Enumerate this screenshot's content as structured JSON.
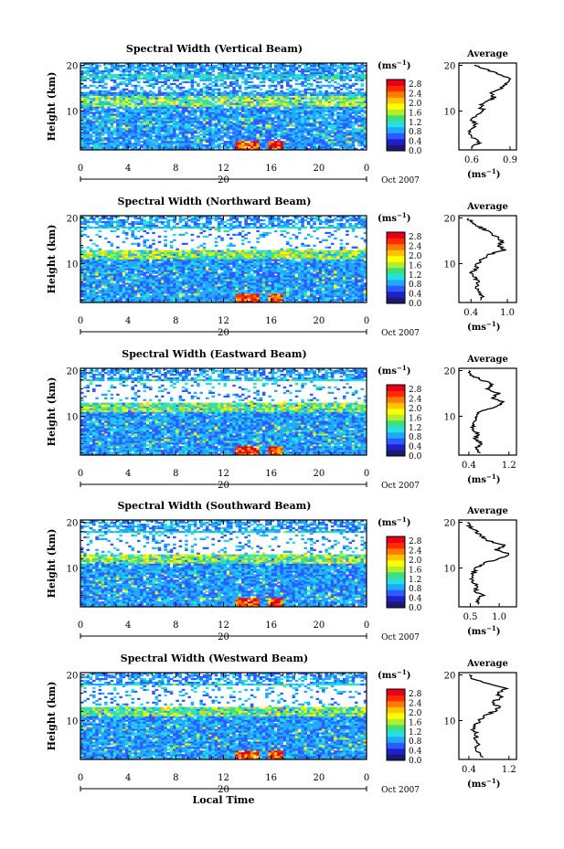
{
  "figure": {
    "xlabel": "Local Time",
    "ylabel": "Height (km)",
    "date_label": "Oct 2007",
    "day_label": "20",
    "colorbar_unit_base": "(ms",
    "colorbar_unit_exp": "−1",
    "colorbar_unit_close": ")",
    "profile_title": "Average",
    "profile_xlabel_base": "(ms",
    "profile_xlabel_exp": "−1",
    "profile_xlabel_close": ")"
  },
  "chart_data": [
    {
      "type": "heatmap",
      "title": "Spectral Width (Vertical Beam)",
      "x_ticks": [
        "0",
        "4",
        "8",
        "12",
        "16",
        "20",
        "0"
      ],
      "xlim": [
        0,
        24
      ],
      "y_ticks": [
        "20",
        "10"
      ],
      "ylim": [
        1.5,
        20.5
      ],
      "colorbar_ticks": [
        "2.8",
        "2.4",
        "2.0",
        "1.6",
        "1.2",
        "0.8",
        "0.4",
        "0.0"
      ],
      "colorbar_range": [
        0.0,
        3.0
      ],
      "colormap": [
        "#1a1a6e",
        "#2020c8",
        "#2a5cff",
        "#21a8ff",
        "#24e0e0",
        "#3ee07a",
        "#b4ee2a",
        "#ffff00",
        "#ffc400",
        "#ff7a00",
        "#ff2a00",
        "#e4001a"
      ],
      "profile": {
        "x_ticks": [
          "0.6",
          "0.9"
        ],
        "xlim": [
          0.5,
          0.95
        ],
        "y_ticks": [
          "20",
          "10"
        ],
        "points": [
          [
            0.6,
            2
          ],
          [
            0.66,
            3
          ],
          [
            0.62,
            4
          ],
          [
            0.58,
            5
          ],
          [
            0.6,
            6
          ],
          [
            0.63,
            7
          ],
          [
            0.6,
            8
          ],
          [
            0.64,
            9
          ],
          [
            0.7,
            10
          ],
          [
            0.66,
            11
          ],
          [
            0.72,
            12
          ],
          [
            0.78,
            13
          ],
          [
            0.74,
            14
          ],
          [
            0.84,
            15
          ],
          [
            0.86,
            16
          ],
          [
            0.9,
            17
          ],
          [
            0.82,
            18
          ],
          [
            0.72,
            19
          ],
          [
            0.62,
            20
          ]
        ]
      }
    },
    {
      "type": "heatmap",
      "title": "Spectral Width (Northward Beam)",
      "x_ticks": [
        "0",
        "4",
        "8",
        "12",
        "16",
        "20",
        "0"
      ],
      "xlim": [
        0,
        24
      ],
      "y_ticks": [
        "20",
        "10"
      ],
      "ylim": [
        1.5,
        20.5
      ],
      "colorbar_ticks": [
        "2.8",
        "2.4",
        "2.0",
        "1.6",
        "1.2",
        "0.8",
        "0.4",
        "0.0"
      ],
      "colorbar_range": [
        0.0,
        3.0
      ],
      "profile": {
        "x_ticks": [
          "0.4",
          "1.0"
        ],
        "xlim": [
          0.2,
          1.15
        ],
        "y_ticks": [
          "20",
          "10"
        ],
        "points": [
          [
            0.55,
            2
          ],
          [
            0.6,
            3
          ],
          [
            0.5,
            4
          ],
          [
            0.48,
            5
          ],
          [
            0.52,
            6
          ],
          [
            0.45,
            7
          ],
          [
            0.42,
            8
          ],
          [
            0.48,
            9
          ],
          [
            0.5,
            10
          ],
          [
            0.58,
            11
          ],
          [
            0.7,
            12
          ],
          [
            0.95,
            13
          ],
          [
            0.85,
            14
          ],
          [
            0.92,
            15
          ],
          [
            0.8,
            16
          ],
          [
            0.7,
            17
          ],
          [
            0.55,
            18
          ],
          [
            0.4,
            19
          ],
          [
            0.35,
            20
          ]
        ]
      }
    },
    {
      "type": "heatmap",
      "title": "Spectral Width (Eastward Beam)",
      "x_ticks": [
        "0",
        "4",
        "8",
        "12",
        "16",
        "20",
        "0"
      ],
      "xlim": [
        0,
        24
      ],
      "y_ticks": [
        "20",
        "10"
      ],
      "ylim": [
        1.5,
        20.5
      ],
      "colorbar_ticks": [
        "2.8",
        "2.4",
        "2.0",
        "1.6",
        "1.2",
        "0.8",
        "0.4",
        "0.0"
      ],
      "colorbar_range": [
        0.0,
        3.0
      ],
      "profile": {
        "x_ticks": [
          "0.4",
          "1.2"
        ],
        "xlim": [
          0.2,
          1.35
        ],
        "y_ticks": [
          "20",
          "10"
        ],
        "points": [
          [
            0.6,
            2
          ],
          [
            0.55,
            3
          ],
          [
            0.65,
            4
          ],
          [
            0.52,
            5
          ],
          [
            0.58,
            6
          ],
          [
            0.5,
            7
          ],
          [
            0.48,
            8
          ],
          [
            0.5,
            9
          ],
          [
            0.55,
            10
          ],
          [
            0.62,
            11
          ],
          [
            0.95,
            12
          ],
          [
            1.1,
            13
          ],
          [
            0.85,
            14
          ],
          [
            1.0,
            15
          ],
          [
            0.75,
            16
          ],
          [
            0.9,
            17
          ],
          [
            0.65,
            18
          ],
          [
            0.45,
            19
          ],
          [
            0.4,
            20
          ]
        ]
      }
    },
    {
      "type": "heatmap",
      "title": "Spectral Width (Southward Beam)",
      "x_ticks": [
        "0",
        "4",
        "8",
        "12",
        "16",
        "20",
        "0"
      ],
      "xlim": [
        0,
        24
      ],
      "y_ticks": [
        "20",
        "10"
      ],
      "ylim": [
        1.5,
        20.5
      ],
      "colorbar_ticks": [
        "2.8",
        "2.4",
        "2.0",
        "1.6",
        "1.2",
        "0.8",
        "0.4",
        "0.0"
      ],
      "colorbar_range": [
        0.0,
        3.0
      ],
      "profile": {
        "x_ticks": [
          "0.5",
          "1.0"
        ],
        "xlim": [
          0.3,
          1.3
        ],
        "y_ticks": [
          "20",
          "10"
        ],
        "points": [
          [
            0.65,
            2
          ],
          [
            0.6,
            3
          ],
          [
            0.7,
            4
          ],
          [
            0.58,
            5
          ],
          [
            0.62,
            6
          ],
          [
            0.55,
            7
          ],
          [
            0.52,
            8
          ],
          [
            0.56,
            9
          ],
          [
            0.6,
            10
          ],
          [
            0.72,
            11
          ],
          [
            1.0,
            12
          ],
          [
            1.2,
            13
          ],
          [
            0.95,
            14
          ],
          [
            1.1,
            15
          ],
          [
            0.8,
            16
          ],
          [
            0.7,
            17
          ],
          [
            0.6,
            18
          ],
          [
            0.5,
            19
          ],
          [
            0.45,
            20
          ]
        ]
      }
    },
    {
      "type": "heatmap",
      "title": "Spectral Width (Westward Beam)",
      "x_ticks": [
        "0",
        "4",
        "8",
        "12",
        "16",
        "20",
        "0"
      ],
      "xlim": [
        0,
        24
      ],
      "y_ticks": [
        "20",
        "10"
      ],
      "ylim": [
        1.5,
        20.5
      ],
      "colorbar_ticks": [
        "2.8",
        "2.4",
        "2.0",
        "1.6",
        "1.2",
        "0.8",
        "0.4",
        "0.0"
      ],
      "colorbar_range": [
        0.0,
        3.0
      ],
      "profile": {
        "x_ticks": [
          "0.4",
          "1.2"
        ],
        "xlim": [
          0.2,
          1.35
        ],
        "y_ticks": [
          "20",
          "10"
        ],
        "points": [
          [
            0.65,
            2
          ],
          [
            0.6,
            3
          ],
          [
            0.55,
            4
          ],
          [
            0.58,
            5
          ],
          [
            0.52,
            6
          ],
          [
            0.56,
            7
          ],
          [
            0.5,
            8
          ],
          [
            0.54,
            9
          ],
          [
            0.6,
            10
          ],
          [
            0.7,
            11
          ],
          [
            0.9,
            12
          ],
          [
            1.0,
            13
          ],
          [
            0.85,
            14
          ],
          [
            1.05,
            15
          ],
          [
            0.95,
            16
          ],
          [
            1.15,
            17
          ],
          [
            0.8,
            18
          ],
          [
            0.5,
            19
          ],
          [
            0.4,
            20
          ]
        ]
      }
    }
  ]
}
